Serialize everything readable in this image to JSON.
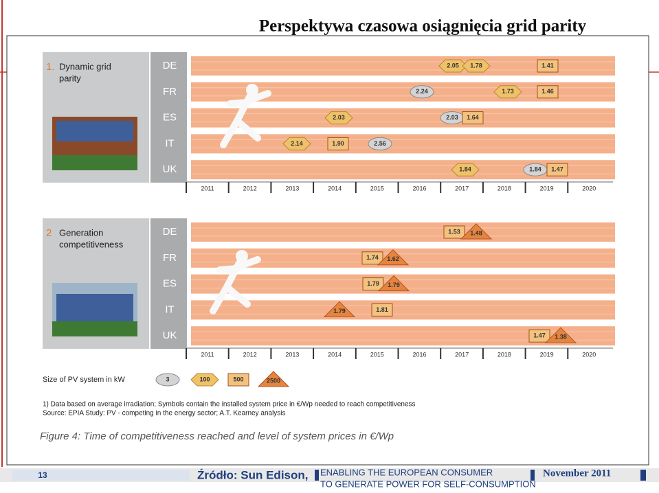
{
  "title": "Perspektywa czasowa osiągnięcia grid parity",
  "panels": [
    {
      "number": "1.",
      "heading": [
        "Dynamic grid",
        "parity"
      ],
      "rows": [
        {
          "country": "DE",
          "markers": [
            {
              "label": "2.05",
              "shape": "hexagon"
            },
            {
              "label": "1.78",
              "shape": "hexagon"
            },
            {
              "label": "1.41",
              "shape": "rect"
            }
          ]
        },
        {
          "country": "FR",
          "markers": [
            {
              "label": "2.24",
              "shape": "circle"
            },
            {
              "label": "1.73",
              "shape": "hexagon"
            },
            {
              "label": "1.46",
              "shape": "rect"
            }
          ]
        },
        {
          "country": "ES",
          "markers": [
            {
              "label": "2.03",
              "shape": "hexagon"
            },
            {
              "label": "2.03",
              "shape": "circle"
            },
            {
              "label": "1.64",
              "shape": "rect"
            }
          ]
        },
        {
          "country": "IT",
          "markers": [
            {
              "label": "2.14",
              "shape": "hexagon"
            },
            {
              "label": "1.90",
              "shape": "rect"
            },
            {
              "label": "2.56",
              "shape": "circle"
            }
          ]
        },
        {
          "country": "UK",
          "markers": [
            {
              "label": "1.84",
              "shape": "hexagon"
            },
            {
              "label": "1.84",
              "shape": "circle"
            },
            {
              "label": "1.47",
              "shape": "rect"
            }
          ]
        }
      ],
      "years": [
        2011,
        2012,
        2013,
        2014,
        2015,
        2016,
        2017,
        2018,
        2019,
        2020
      ]
    },
    {
      "number": "2",
      "heading": [
        "Generation",
        "competitiveness"
      ],
      "rows": [
        {
          "country": "DE",
          "markers": [
            {
              "label": "1.53",
              "shape": "rect"
            },
            {
              "label": "1.48",
              "shape": "triangle"
            }
          ]
        },
        {
          "country": "FR",
          "markers": [
            {
              "label": "1.74",
              "shape": "rect"
            },
            {
              "label": "1.62",
              "shape": "triangle"
            }
          ]
        },
        {
          "country": "ES",
          "markers": [
            {
              "label": "1.79",
              "shape": "rect"
            },
            {
              "label": "1.79",
              "shape": "triangle"
            }
          ]
        },
        {
          "country": "IT",
          "markers": [
            {
              "label": "1.79",
              "shape": "triangle"
            },
            {
              "label": "1.81",
              "shape": "rect"
            }
          ]
        },
        {
          "country": "UK",
          "markers": [
            {
              "label": "1.47",
              "shape": "rect"
            },
            {
              "label": "1.38",
              "shape": "triangle"
            }
          ]
        }
      ],
      "years": [
        2011,
        2012,
        2013,
        2014,
        2015,
        2016,
        2017,
        2018,
        2019,
        2020
      ]
    }
  ],
  "legend": {
    "label": "Size of PV system in kW",
    "items": [
      {
        "label": "3",
        "shape": "circle"
      },
      {
        "label": "100",
        "shape": "hexagon"
      },
      {
        "label": "500",
        "shape": "rect"
      },
      {
        "label": "2500",
        "shape": "triangle"
      }
    ]
  },
  "footnotes": [
    "1) Data based on average irradiation; Symbols contain the installed system price in €/Wp needed to reach competitiveness",
    "Source: EPIA Study: PV - competing in the energy sector; A.T. Kearney analysis"
  ],
  "caption": "Figure 4: Time of competitiveness reached and level of system prices in €/Wp",
  "footer": {
    "page": "13",
    "source": "Źródło: Sun Edison,",
    "tagline": [
      "ENABLING THE EUROPEAN CONSUMER",
      "TO GENERATE POWER FOR SELF-CONSUMPTION"
    ],
    "date": "November 2011"
  }
}
